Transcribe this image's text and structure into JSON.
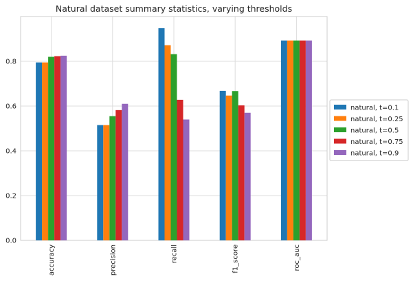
{
  "chart_data": {
    "type": "bar",
    "title": "Natural dataset summary statistics, varying thresholds",
    "xlabel": "",
    "ylabel": "",
    "categories": [
      "accuracy",
      "precision",
      "recall",
      "f1_score",
      "roc_auc"
    ],
    "yticks": [
      "0.0",
      "0.2",
      "0.4",
      "0.6",
      "0.8"
    ],
    "ylim": [
      0,
      1.0
    ],
    "grid": true,
    "legend_position": "right",
    "series": [
      {
        "name": "natural, t=0.1",
        "color": "#1f77b4",
        "values": [
          0.795,
          0.515,
          0.948,
          0.668,
          0.893
        ]
      },
      {
        "name": "natural, t=0.25",
        "color": "#ff7f0e",
        "values": [
          0.795,
          0.515,
          0.872,
          0.647,
          0.893
        ]
      },
      {
        "name": "natural, t=0.5",
        "color": "#2ca02c",
        "values": [
          0.82,
          0.555,
          0.832,
          0.667,
          0.893
        ]
      },
      {
        "name": "natural, t=0.75",
        "color": "#d62728",
        "values": [
          0.823,
          0.582,
          0.628,
          0.603,
          0.893
        ]
      },
      {
        "name": "natural, t=0.9",
        "color": "#9467bd",
        "values": [
          0.825,
          0.61,
          0.54,
          0.57,
          0.893
        ]
      }
    ]
  }
}
